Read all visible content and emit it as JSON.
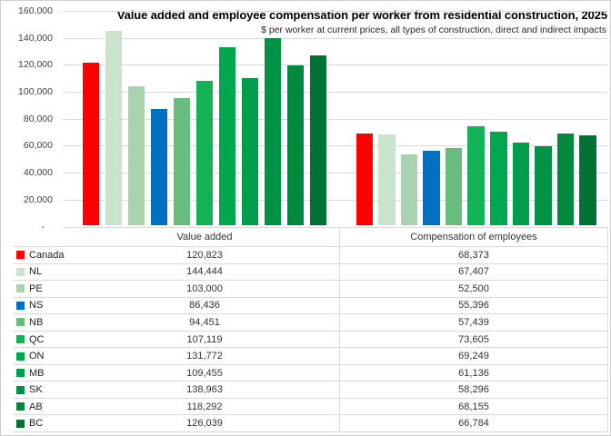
{
  "chart_data": {
    "type": "bar",
    "title": "Value added and employee compensation per worker from residential construction, 2025",
    "subtitle": "$ per worker at current prices, all types of construction, direct and indirect impacts",
    "categories": [
      "Value added",
      "Compensation of employees"
    ],
    "series": [
      {
        "name": "Canada",
        "color": "#FF0000",
        "values": [
          120823,
          68373
        ],
        "formatted": [
          "120,823",
          "68,373"
        ]
      },
      {
        "name": "NL",
        "color": "#C9E3CD",
        "values": [
          144444,
          67407
        ],
        "formatted": [
          "144,444",
          "67,407"
        ]
      },
      {
        "name": "PE",
        "color": "#A8D3AE",
        "values": [
          103000,
          52500
        ],
        "formatted": [
          "103,000",
          "52,500"
        ]
      },
      {
        "name": "NS",
        "color": "#0070C0",
        "values": [
          86436,
          55396
        ],
        "formatted": [
          "86,436",
          "55,396"
        ]
      },
      {
        "name": "NB",
        "color": "#68BD7E",
        "values": [
          94451,
          57439
        ],
        "formatted": [
          "94,451",
          "57,439"
        ]
      },
      {
        "name": "QC",
        "color": "#14B257",
        "values": [
          107119,
          73605
        ],
        "formatted": [
          "107,119",
          "73,605"
        ]
      },
      {
        "name": "ON",
        "color": "#01A74F",
        "values": [
          131772,
          69249
        ],
        "formatted": [
          "131,772",
          "69,249"
        ]
      },
      {
        "name": "MB",
        "color": "#009D4B",
        "values": [
          109455,
          61136
        ],
        "formatted": [
          "109,455",
          "61,136"
        ]
      },
      {
        "name": "SK",
        "color": "#009346",
        "values": [
          138963,
          58296
        ],
        "formatted": [
          "138,963",
          "58,296"
        ]
      },
      {
        "name": "AB",
        "color": "#00893E",
        "values": [
          118292,
          68155
        ],
        "formatted": [
          "118,292",
          "68,155"
        ]
      },
      {
        "name": "BC",
        "color": "#007233",
        "values": [
          126039,
          66784
        ],
        "formatted": [
          "126,039",
          "66,784"
        ]
      }
    ],
    "ylim": [
      0,
      160000
    ],
    "ytick_interval": 20000,
    "ytick_labels_top_to_bottom": [
      "160,000",
      "140,000",
      "120,000",
      "100,000",
      "80,000",
      "60,000",
      "40,000",
      "20,000",
      "-"
    ],
    "grid": true,
    "legend_position": "left-of-data-table",
    "colors": {
      "gridline": "#D9D9D9",
      "axis_text": "#404040"
    }
  }
}
